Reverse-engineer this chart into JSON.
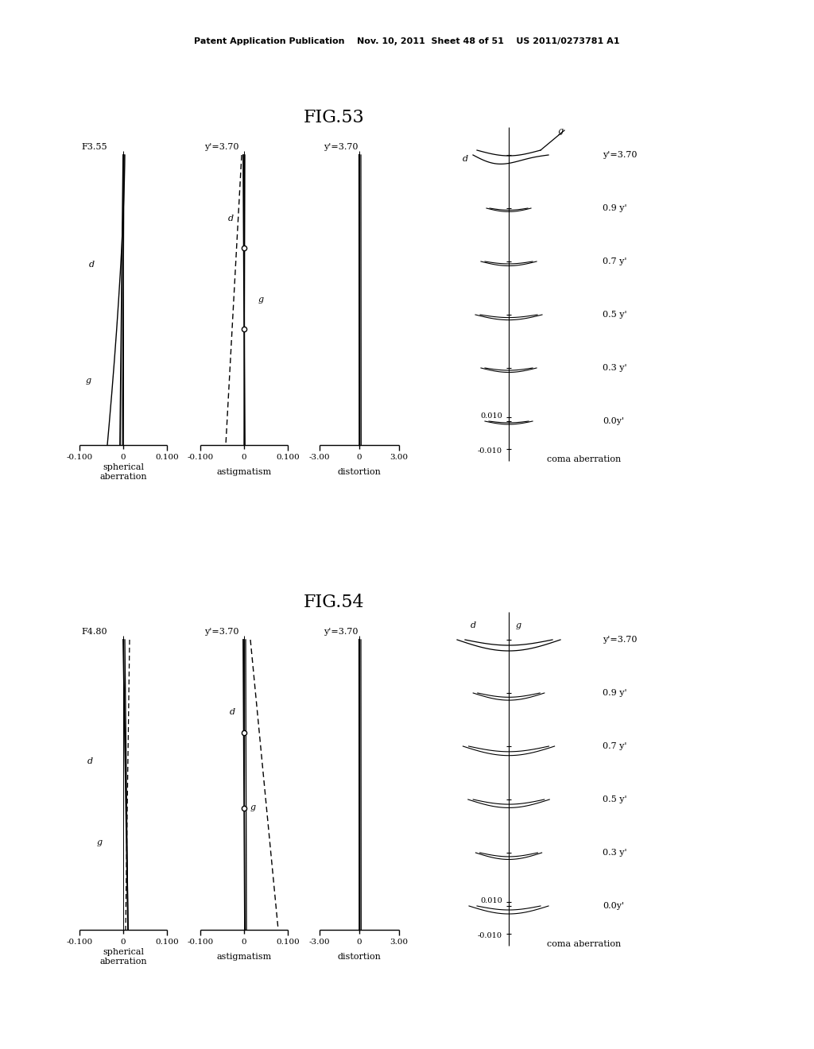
{
  "title": "Patent Application Publication    Nov. 10, 2011  Sheet 48 of 51    US 2011/0273781 A1",
  "fig53_title": "FIG.53",
  "fig54_title": "FIG.54",
  "background_color": "#ffffff",
  "fig53": {
    "f_number": "F3.55",
    "sph_label": "spherical\naberration",
    "ast_label": "astigmatism",
    "dist_label": "distortion",
    "coma_label": "coma aberration",
    "y_label": "y'=3.70",
    "coma_y_labels": [
      "y'=3.70",
      "0.9 y'",
      "0.7 y'",
      "0.5 y'",
      "0.3 y'",
      "0.0y'"
    ]
  },
  "fig54": {
    "f_number": "F4.80",
    "sph_label": "spherical\naberration",
    "ast_label": "astigmatism",
    "dist_label": "distortion",
    "coma_label": "coma aberration",
    "y_label": "y'=3.70",
    "coma_y_labels": [
      "y'=3.70",
      "0.9 y'",
      "0.7 y'",
      "0.5 y'",
      "0.3 y'",
      "0.0y'"
    ]
  }
}
